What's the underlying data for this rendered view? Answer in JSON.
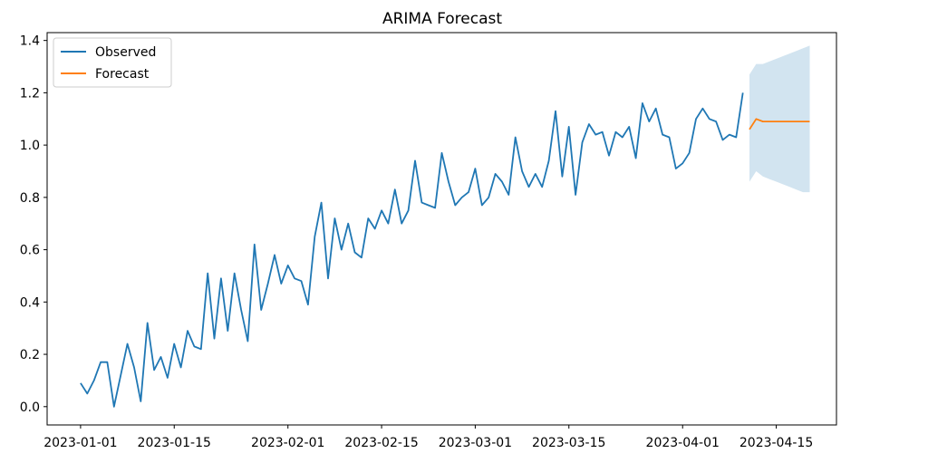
{
  "chart_data": {
    "type": "line",
    "title": "ARIMA Forecast",
    "xlabel": "",
    "ylabel": "",
    "x_axis_type": "date",
    "xlim": [
      "2022-12-27",
      "2023-04-24"
    ],
    "ylim": [
      -0.07,
      1.43
    ],
    "x_ticks": [
      "2023-01-01",
      "2023-01-15",
      "2023-02-01",
      "2023-02-15",
      "2023-03-01",
      "2023-03-15",
      "2023-04-01",
      "2023-04-15"
    ],
    "x_tick_labels": [
      "2023-01-01",
      "2023-01-15",
      "2023-02-01",
      "2023-02-15",
      "2023-03-01",
      "2023-03-15",
      "2023-04-01",
      "2023-04-15"
    ],
    "y_ticks": [
      0.0,
      0.2,
      0.4,
      0.6,
      0.8,
      1.0,
      1.2,
      1.4
    ],
    "y_tick_labels": [
      "0.0",
      "0.2",
      "0.4",
      "0.6",
      "0.8",
      "1.0",
      "1.2",
      "1.4"
    ],
    "grid": false,
    "legend_position": "upper-left",
    "series": [
      {
        "name": "Observed",
        "color": "#1f77b4",
        "x": [
          "2023-01-01",
          "2023-01-02",
          "2023-01-03",
          "2023-01-04",
          "2023-01-05",
          "2023-01-06",
          "2023-01-07",
          "2023-01-08",
          "2023-01-09",
          "2023-01-10",
          "2023-01-11",
          "2023-01-12",
          "2023-01-13",
          "2023-01-14",
          "2023-01-15",
          "2023-01-16",
          "2023-01-17",
          "2023-01-18",
          "2023-01-19",
          "2023-01-20",
          "2023-01-21",
          "2023-01-22",
          "2023-01-23",
          "2023-01-24",
          "2023-01-25",
          "2023-01-26",
          "2023-01-27",
          "2023-01-28",
          "2023-01-29",
          "2023-01-30",
          "2023-01-31",
          "2023-02-01",
          "2023-02-02",
          "2023-02-03",
          "2023-02-04",
          "2023-02-05",
          "2023-02-06",
          "2023-02-07",
          "2023-02-08",
          "2023-02-09",
          "2023-02-10",
          "2023-02-11",
          "2023-02-12",
          "2023-02-13",
          "2023-02-14",
          "2023-02-15",
          "2023-02-16",
          "2023-02-17",
          "2023-02-18",
          "2023-02-19",
          "2023-02-20",
          "2023-02-21",
          "2023-02-22",
          "2023-02-23",
          "2023-02-24",
          "2023-02-25",
          "2023-02-26",
          "2023-02-27",
          "2023-02-28",
          "2023-03-01",
          "2023-03-02",
          "2023-03-03",
          "2023-03-04",
          "2023-03-05",
          "2023-03-06",
          "2023-03-07",
          "2023-03-08",
          "2023-03-09",
          "2023-03-10",
          "2023-03-11",
          "2023-03-12",
          "2023-03-13",
          "2023-03-14",
          "2023-03-15",
          "2023-03-16",
          "2023-03-17",
          "2023-03-18",
          "2023-03-19",
          "2023-03-20",
          "2023-03-21",
          "2023-03-22",
          "2023-03-23",
          "2023-03-24",
          "2023-03-25",
          "2023-03-26",
          "2023-03-27",
          "2023-03-28",
          "2023-03-29",
          "2023-03-30",
          "2023-03-31",
          "2023-04-01",
          "2023-04-02",
          "2023-04-03",
          "2023-04-04",
          "2023-04-05",
          "2023-04-06",
          "2023-04-07",
          "2023-04-08",
          "2023-04-09",
          "2023-04-10"
        ],
        "values": [
          0.09,
          0.05,
          0.1,
          0.17,
          0.17,
          0.0,
          0.12,
          0.24,
          0.15,
          0.02,
          0.32,
          0.14,
          0.19,
          0.11,
          0.24,
          0.15,
          0.29,
          0.23,
          0.22,
          0.51,
          0.26,
          0.49,
          0.29,
          0.51,
          0.37,
          0.25,
          0.62,
          0.37,
          0.47,
          0.58,
          0.47,
          0.54,
          0.49,
          0.48,
          0.39,
          0.65,
          0.78,
          0.49,
          0.72,
          0.6,
          0.7,
          0.59,
          0.57,
          0.72,
          0.68,
          0.75,
          0.7,
          0.83,
          0.7,
          0.75,
          0.94,
          0.78,
          0.77,
          0.76,
          0.97,
          0.86,
          0.77,
          0.8,
          0.82,
          0.91,
          0.77,
          0.8,
          0.89,
          0.86,
          0.81,
          1.03,
          0.9,
          0.84,
          0.89,
          0.84,
          0.94,
          1.13,
          0.88,
          1.07,
          0.81,
          1.01,
          1.08,
          1.04,
          1.05,
          0.96,
          1.05,
          1.03,
          1.07,
          0.95,
          1.16,
          1.09,
          1.14,
          1.04,
          1.03,
          0.91,
          0.93,
          0.97,
          1.1,
          1.14,
          1.1,
          1.09,
          1.02,
          1.04,
          1.03,
          1.2
        ]
      },
      {
        "name": "Forecast",
        "color": "#ff7f0e",
        "x": [
          "2023-04-11",
          "2023-04-12",
          "2023-04-13",
          "2023-04-14",
          "2023-04-15",
          "2023-04-16",
          "2023-04-17",
          "2023-04-18",
          "2023-04-19",
          "2023-04-20"
        ],
        "values": [
          1.06,
          1.1,
          1.09,
          1.09,
          1.09,
          1.09,
          1.09,
          1.09,
          1.09,
          1.09
        ]
      }
    ],
    "confidence_band": {
      "color": "#1f77b4",
      "opacity": 0.2,
      "x": [
        "2023-04-11",
        "2023-04-12",
        "2023-04-13",
        "2023-04-14",
        "2023-04-15",
        "2023-04-16",
        "2023-04-17",
        "2023-04-18",
        "2023-04-19",
        "2023-04-20"
      ],
      "lower": [
        0.86,
        0.9,
        0.88,
        0.87,
        0.86,
        0.85,
        0.84,
        0.83,
        0.82,
        0.82
      ],
      "upper": [
        1.27,
        1.31,
        1.31,
        1.32,
        1.33,
        1.34,
        1.35,
        1.36,
        1.37,
        1.38
      ]
    }
  }
}
